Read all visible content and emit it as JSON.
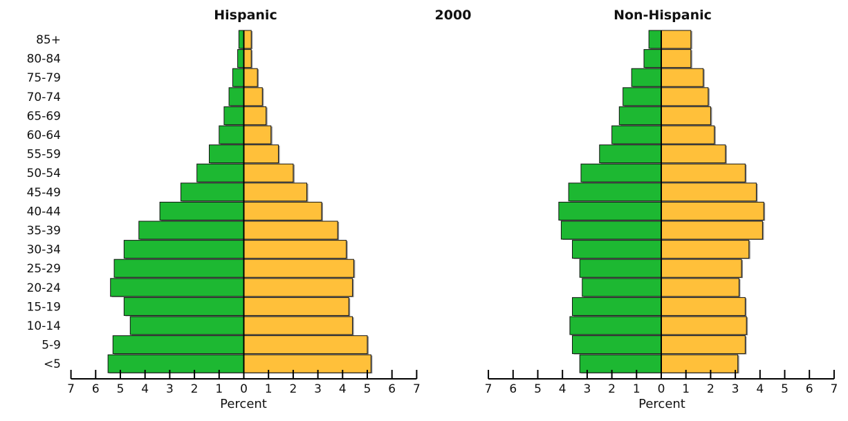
{
  "chart_data": [
    {
      "type": "bar",
      "orientation": "horizontal-pyramid",
      "title": "Hispanic",
      "xlabel": "Percent",
      "xlim": [
        -7,
        7
      ],
      "tick_labels": [
        "7",
        "6",
        "5",
        "4",
        "3",
        "2",
        "1",
        "0",
        "1",
        "2",
        "3",
        "4",
        "5",
        "6",
        "7"
      ],
      "categories": [
        "85+",
        "80-84",
        "75-79",
        "70-74",
        "65-69",
        "60-64",
        "55-59",
        "50-54",
        "45-49",
        "40-44",
        "35-39",
        "30-34",
        "25-29",
        "20-24",
        "15-19",
        "10-14",
        "5-9",
        "<5"
      ],
      "series": [
        {
          "color": "#1db832",
          "side": "left",
          "values": [
            0.2,
            0.25,
            0.45,
            0.6,
            0.8,
            1.0,
            1.4,
            1.9,
            2.55,
            3.4,
            4.25,
            4.85,
            5.25,
            5.4,
            4.85,
            4.6,
            5.3,
            5.5
          ]
        },
        {
          "color": "#ffc03a",
          "side": "right",
          "values": [
            0.3,
            0.3,
            0.55,
            0.75,
            0.9,
            1.1,
            1.4,
            2.0,
            2.55,
            3.15,
            3.8,
            4.15,
            4.45,
            4.4,
            4.25,
            4.4,
            5.0,
            5.15
          ]
        }
      ]
    },
    {
      "type": "bar",
      "orientation": "horizontal-pyramid",
      "title": "Non-Hispanic",
      "xlabel": "Percent",
      "xlim": [
        -7,
        7
      ],
      "tick_labels": [
        "7",
        "6",
        "5",
        "4",
        "3",
        "2",
        "1",
        "0",
        "1",
        "2",
        "3",
        "4",
        "5",
        "6",
        "7"
      ],
      "categories": [
        "85+",
        "80-84",
        "75-79",
        "70-74",
        "65-69",
        "60-64",
        "55-59",
        "50-54",
        "45-49",
        "40-44",
        "35-39",
        "30-34",
        "25-29",
        "20-24",
        "15-19",
        "10-14",
        "5-9",
        "<5"
      ],
      "series": [
        {
          "color": "#1db832",
          "side": "left",
          "values": [
            0.5,
            0.7,
            1.2,
            1.55,
            1.7,
            2.0,
            2.5,
            3.25,
            3.75,
            4.15,
            4.05,
            3.6,
            3.3,
            3.2,
            3.6,
            3.7,
            3.6,
            3.3
          ]
        },
        {
          "color": "#ffc03a",
          "side": "right",
          "values": [
            1.2,
            1.2,
            1.7,
            1.9,
            2.0,
            2.15,
            2.6,
            3.4,
            3.85,
            4.15,
            4.1,
            3.55,
            3.25,
            3.15,
            3.4,
            3.45,
            3.4,
            3.1
          ]
        }
      ]
    }
  ],
  "year_label": "2000"
}
